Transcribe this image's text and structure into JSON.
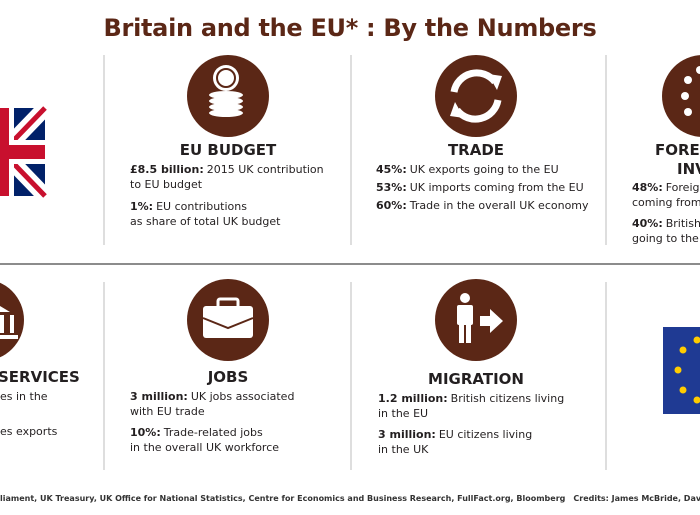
{
  "title": "Britain and the EU* : By the Numbers",
  "panels": [
    {
      "heading_lines": [
        "EU BUDGET"
      ],
      "items": [
        {
          "bold": "£8.5 billion:",
          "lines": [
            "2015 UK contribution",
            "to EU budget"
          ]
        },
        {
          "bold": "1%:",
          "lines": [
            "EU contributions",
            "as share of total UK budget"
          ]
        }
      ]
    },
    {
      "heading_lines": [
        "TRADE"
      ],
      "items": [
        {
          "bold": "45%:",
          "lines": [
            "UK exports going to the EU"
          ]
        },
        {
          "bold": "53%:",
          "lines": [
            "UK imports coming from the EU"
          ]
        },
        {
          "bold": "60%:",
          "lines": [
            "Trade in the overall UK economy"
          ]
        }
      ]
    },
    {
      "heading_lines": [
        "FORE",
        "INV"
      ],
      "items": [
        {
          "bold": "48%:",
          "lines": [
            "Foreig",
            "coming from"
          ]
        },
        {
          "bold": "40%:",
          "lines": [
            "British",
            "going to the l"
          ]
        }
      ]
    },
    {
      "heading_lines": [
        "SERVICES"
      ],
      "items": [
        {
          "lines": [
            "es in the"
          ]
        },
        {
          "lines": [
            "es exports"
          ]
        }
      ]
    },
    {
      "heading_lines": [
        "JOBS"
      ],
      "items": [
        {
          "bold": "3 million:",
          "lines": [
            "UK jobs associated",
            "with EU trade"
          ]
        },
        {
          "bold": "10%:",
          "lines": [
            "Trade-related jobs",
            "in the overall UK workforce"
          ]
        }
      ]
    },
    {
      "heading_lines": [
        "MIGRATION"
      ],
      "items": [
        {
          "bold": "1.2 million:",
          "lines": [
            "British citizens living",
            "in the EU"
          ]
        },
        {
          "bold": "3 million:",
          "lines": [
            "EU citizens living",
            "in the UK"
          ]
        }
      ]
    }
  ],
  "footer": {
    "sources": "liament, UK Treasury, UK Office for National Statistics, Centre for Economics and Business Research, FullFact.org, Bloomberg",
    "credits": "Credits: James McBride, David Foster"
  }
}
